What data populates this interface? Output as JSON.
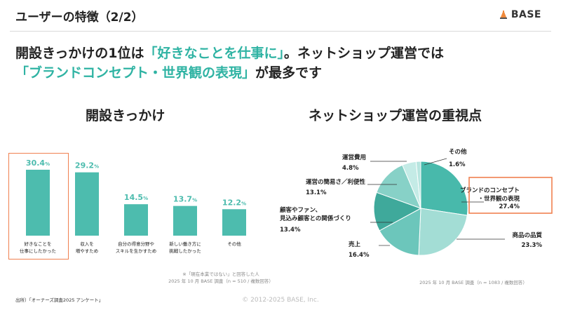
{
  "header": {
    "title": "ユーザーの特徴（2/2）",
    "logo_text": "BASE"
  },
  "headline": {
    "line1_prefix": "開設きっかけの1位は",
    "line1_accent": "「好きなことを仕事に」",
    "line1_suffix": "。ネットショップ運営では",
    "line2_accent": "「ブランドコンセプト・世界観の表現」",
    "line2_suffix": "が最多です"
  },
  "colors": {
    "accent": "#2fb3a3",
    "bar": "#4dbcae",
    "highlight": "#f08050"
  },
  "left_panel": {
    "title": "開設きっかけ",
    "note_line1": "※「現在本業ではない」と回答した人",
    "note_line2": "2025 年 10 月 BASE 調査（n = 510 / 複数回答）"
  },
  "right_panel": {
    "title": "ネットショップ運営の重視点",
    "note": "2025 年 10 月 BASE 調査（n = 1083 / 複数回答）"
  },
  "chart_data": [
    {
      "type": "bar",
      "title": "開設きっかけ",
      "categories": [
        "好きなことを\n仕事にしたかった",
        "収入を\n増やすため",
        "自分の得意分野や\nスキルを生かすため",
        "新しい働き方に\n挑戦したかった",
        "その他"
      ],
      "values": [
        30.4,
        29.2,
        14.5,
        13.7,
        12.2
      ],
      "value_labels": [
        "30.4",
        "29.2",
        "14.5",
        "13.7",
        "12.2"
      ],
      "unit": "%",
      "ylim": [
        0,
        32
      ],
      "highlight_index": 0
    },
    {
      "type": "pie",
      "title": "ネットショップ運営の重視点",
      "slices": [
        {
          "label": "ブランドのコンセプト\n・世界観の表現",
          "value": 27.4,
          "value_label": "27.4%"
        },
        {
          "label": "商品の品質",
          "value": 23.3,
          "value_label": "23.3%"
        },
        {
          "label": "売上",
          "value": 16.4,
          "value_label": "16.4%"
        },
        {
          "label": "顧客やファン、\n見込み顧客との関係づくり",
          "value": 13.4,
          "value_label": "13.4%"
        },
        {
          "label": "運営の簡易さ／利便性",
          "value": 13.1,
          "value_label": "13.1%"
        },
        {
          "label": "運営費用",
          "value": 4.8,
          "value_label": "4.8%"
        },
        {
          "label": "その他",
          "value": 1.6,
          "value_label": "1.6%"
        }
      ],
      "highlight_index": 0
    }
  ],
  "footer": {
    "source": "出所）「オーナーズ調査2025 アンケート」",
    "copyright": "© 2012-2025 BASE, Inc."
  }
}
